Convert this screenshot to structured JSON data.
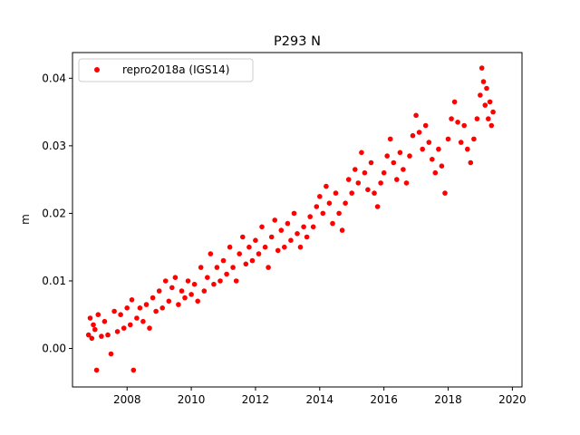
{
  "chart_data": {
    "type": "scatter",
    "title": "P293 N",
    "xlabel": "",
    "ylabel": "m",
    "xlim": [
      2006.3,
      2020.3
    ],
    "ylim": [
      -0.0057,
      0.0438
    ],
    "x_ticks": [
      2008,
      2010,
      2012,
      2014,
      2016,
      2018,
      2020
    ],
    "y_ticks": [
      0.0,
      0.01,
      0.02,
      0.03,
      0.04
    ],
    "y_tick_labels": [
      "0.00",
      "0.01",
      "0.02",
      "0.03",
      "0.04"
    ],
    "grid": false,
    "legend_position": "top-left",
    "series": [
      {
        "name": "repro2018a (IGS14)",
        "color": "#ff0000",
        "marker": "circle",
        "x_range": [
          2006.8,
          2019.4
        ],
        "points": [
          [
            2006.8,
            0.002
          ],
          [
            2006.85,
            0.0045
          ],
          [
            2006.9,
            0.0015
          ],
          [
            2006.95,
            0.0035
          ],
          [
            2007.0,
            0.0028
          ],
          [
            2007.05,
            -0.0032
          ],
          [
            2007.1,
            0.005
          ],
          [
            2007.2,
            0.0018
          ],
          [
            2007.3,
            0.004
          ],
          [
            2007.4,
            0.002
          ],
          [
            2007.5,
            -0.0008
          ],
          [
            2007.6,
            0.0055
          ],
          [
            2007.7,
            0.0025
          ],
          [
            2007.8,
            0.005
          ],
          [
            2007.9,
            0.003
          ],
          [
            2008.0,
            0.006
          ],
          [
            2008.1,
            0.0035
          ],
          [
            2008.15,
            0.0072
          ],
          [
            2008.2,
            -0.0032
          ],
          [
            2008.3,
            0.0045
          ],
          [
            2008.4,
            0.006
          ],
          [
            2008.5,
            0.004
          ],
          [
            2008.6,
            0.0065
          ],
          [
            2008.7,
            0.003
          ],
          [
            2008.8,
            0.0075
          ],
          [
            2008.9,
            0.0055
          ],
          [
            2009.0,
            0.0085
          ],
          [
            2009.1,
            0.006
          ],
          [
            2009.2,
            0.01
          ],
          [
            2009.3,
            0.007
          ],
          [
            2009.4,
            0.009
          ],
          [
            2009.5,
            0.0105
          ],
          [
            2009.6,
            0.0065
          ],
          [
            2009.7,
            0.0085
          ],
          [
            2009.8,
            0.0075
          ],
          [
            2009.9,
            0.01
          ],
          [
            2010.0,
            0.008
          ],
          [
            2010.1,
            0.0095
          ],
          [
            2010.2,
            0.007
          ],
          [
            2010.3,
            0.012
          ],
          [
            2010.4,
            0.0085
          ],
          [
            2010.5,
            0.0105
          ],
          [
            2010.6,
            0.014
          ],
          [
            2010.7,
            0.0095
          ],
          [
            2010.8,
            0.012
          ],
          [
            2010.9,
            0.01
          ],
          [
            2011.0,
            0.013
          ],
          [
            2011.1,
            0.011
          ],
          [
            2011.2,
            0.015
          ],
          [
            2011.3,
            0.012
          ],
          [
            2011.4,
            0.01
          ],
          [
            2011.5,
            0.014
          ],
          [
            2011.6,
            0.0165
          ],
          [
            2011.7,
            0.0125
          ],
          [
            2011.8,
            0.015
          ],
          [
            2011.9,
            0.013
          ],
          [
            2012.0,
            0.016
          ],
          [
            2012.1,
            0.014
          ],
          [
            2012.2,
            0.018
          ],
          [
            2012.3,
            0.015
          ],
          [
            2012.4,
            0.012
          ],
          [
            2012.5,
            0.0165
          ],
          [
            2012.6,
            0.019
          ],
          [
            2012.7,
            0.0145
          ],
          [
            2012.8,
            0.0175
          ],
          [
            2012.9,
            0.015
          ],
          [
            2013.0,
            0.0185
          ],
          [
            2013.1,
            0.016
          ],
          [
            2013.2,
            0.02
          ],
          [
            2013.3,
            0.017
          ],
          [
            2013.4,
            0.015
          ],
          [
            2013.5,
            0.018
          ],
          [
            2013.6,
            0.0165
          ],
          [
            2013.7,
            0.0195
          ],
          [
            2013.8,
            0.018
          ],
          [
            2013.9,
            0.021
          ],
          [
            2014.0,
            0.0225
          ],
          [
            2014.1,
            0.02
          ],
          [
            2014.2,
            0.024
          ],
          [
            2014.3,
            0.0215
          ],
          [
            2014.4,
            0.0185
          ],
          [
            2014.5,
            0.023
          ],
          [
            2014.6,
            0.02
          ],
          [
            2014.7,
            0.0175
          ],
          [
            2014.8,
            0.0215
          ],
          [
            2014.9,
            0.025
          ],
          [
            2015.0,
            0.023
          ],
          [
            2015.1,
            0.0265
          ],
          [
            2015.2,
            0.0245
          ],
          [
            2015.3,
            0.029
          ],
          [
            2015.4,
            0.026
          ],
          [
            2015.5,
            0.0235
          ],
          [
            2015.6,
            0.0275
          ],
          [
            2015.7,
            0.023
          ],
          [
            2015.8,
            0.021
          ],
          [
            2015.9,
            0.0245
          ],
          [
            2016.0,
            0.026
          ],
          [
            2016.1,
            0.0285
          ],
          [
            2016.2,
            0.031
          ],
          [
            2016.3,
            0.0275
          ],
          [
            2016.4,
            0.025
          ],
          [
            2016.5,
            0.029
          ],
          [
            2016.6,
            0.0265
          ],
          [
            2016.7,
            0.0245
          ],
          [
            2016.8,
            0.0285
          ],
          [
            2016.9,
            0.0315
          ],
          [
            2017.0,
            0.0345
          ],
          [
            2017.1,
            0.032
          ],
          [
            2017.2,
            0.0295
          ],
          [
            2017.3,
            0.033
          ],
          [
            2017.4,
            0.0305
          ],
          [
            2017.5,
            0.028
          ],
          [
            2017.6,
            0.026
          ],
          [
            2017.7,
            0.0295
          ],
          [
            2017.8,
            0.027
          ],
          [
            2017.9,
            0.023
          ],
          [
            2018.0,
            0.031
          ],
          [
            2018.1,
            0.034
          ],
          [
            2018.2,
            0.0365
          ],
          [
            2018.3,
            0.0335
          ],
          [
            2018.4,
            0.0305
          ],
          [
            2018.5,
            0.033
          ],
          [
            2018.6,
            0.0295
          ],
          [
            2018.7,
            0.0275
          ],
          [
            2018.8,
            0.031
          ],
          [
            2018.9,
            0.034
          ],
          [
            2019.0,
            0.0375
          ],
          [
            2019.05,
            0.0415
          ],
          [
            2019.1,
            0.0395
          ],
          [
            2019.15,
            0.036
          ],
          [
            2019.2,
            0.0385
          ],
          [
            2019.25,
            0.034
          ],
          [
            2019.3,
            0.0365
          ],
          [
            2019.35,
            0.033
          ],
          [
            2019.4,
            0.035
          ]
        ]
      }
    ]
  }
}
